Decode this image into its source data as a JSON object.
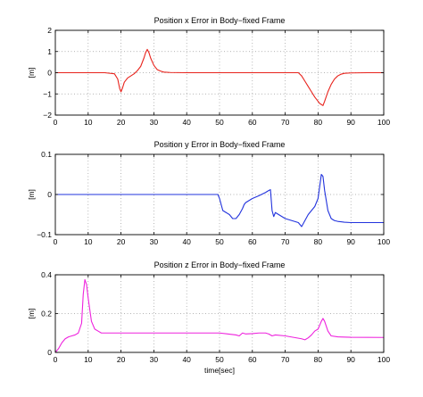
{
  "chart_data": [
    {
      "type": "line",
      "title": "Position x Error in Body−fixed Frame",
      "xlabel": "",
      "ylabel": "[m]",
      "xlim": [
        0,
        100
      ],
      "ylim": [
        -2,
        2
      ],
      "xticks": [
        0,
        10,
        20,
        30,
        40,
        50,
        60,
        70,
        80,
        90,
        100
      ],
      "yticks": [
        -2,
        -1,
        0,
        1,
        2
      ],
      "xtick_labels": [
        "0",
        "10",
        "20",
        "30",
        "40",
        "50",
        "60",
        "70",
        "80",
        "90",
        "100"
      ],
      "ytick_labels": [
        "−2",
        "−1",
        "0",
        "1",
        "2"
      ],
      "grid": true,
      "series": [
        {
          "color": "#e8231c",
          "x": [
            0,
            5,
            10,
            15,
            18,
            19,
            19.6,
            20,
            20.5,
            21,
            22,
            23,
            24,
            25,
            26,
            27,
            27.5,
            28,
            28.5,
            29,
            30,
            31,
            32,
            33,
            35,
            40,
            50,
            60,
            70,
            74,
            75,
            76,
            77,
            78,
            79,
            80,
            80.5,
            81,
            81.5,
            82,
            83,
            84,
            85,
            86,
            87,
            88,
            90,
            95,
            100
          ],
          "y": [
            0,
            0,
            0,
            0,
            -0.05,
            -0.3,
            -0.75,
            -0.9,
            -0.7,
            -0.45,
            -0.25,
            -0.15,
            -0.05,
            0.1,
            0.3,
            0.7,
            0.95,
            1.1,
            0.95,
            0.7,
            0.35,
            0.15,
            0.08,
            0.03,
            0.01,
            0,
            0,
            0,
            0,
            0,
            -0.15,
            -0.4,
            -0.65,
            -0.9,
            -1.15,
            -1.35,
            -1.45,
            -1.5,
            -1.55,
            -1.35,
            -0.9,
            -0.55,
            -0.3,
            -0.15,
            -0.07,
            -0.03,
            -0.01,
            0,
            0
          ]
        }
      ]
    },
    {
      "type": "line",
      "title": "Position y Error in Body−fixed Frame",
      "xlabel": "",
      "ylabel": "[m]",
      "xlim": [
        0,
        100
      ],
      "ylim": [
        -0.1,
        0.1
      ],
      "xticks": [
        0,
        10,
        20,
        30,
        40,
        50,
        60,
        70,
        80,
        90,
        100
      ],
      "yticks": [
        -0.1,
        0,
        0.1
      ],
      "xtick_labels": [
        "0",
        "10",
        "20",
        "30",
        "40",
        "50",
        "60",
        "70",
        "80",
        "90",
        "100"
      ],
      "ytick_labels": [
        "−0.1",
        "0",
        "0.1"
      ],
      "grid": true,
      "series": [
        {
          "color": "#2233dd",
          "x": [
            0,
            10,
            20,
            30,
            40,
            49.5,
            50,
            50.5,
            51,
            52,
            53,
            54,
            55,
            56,
            57,
            57.5,
            58,
            59,
            60,
            62,
            64,
            65,
            65.5,
            66,
            66.5,
            67,
            68,
            69,
            70,
            72,
            74,
            75,
            76,
            77,
            78,
            79,
            80,
            80.5,
            81,
            81.5,
            82,
            83,
            84,
            85,
            86,
            88,
            90,
            95,
            100
          ],
          "y": [
            0,
            0,
            0,
            0,
            0,
            0,
            -0.01,
            -0.025,
            -0.04,
            -0.045,
            -0.05,
            -0.06,
            -0.06,
            -0.05,
            -0.035,
            -0.025,
            -0.02,
            -0.015,
            -0.01,
            -0.003,
            0.005,
            0.01,
            0.012,
            -0.04,
            -0.055,
            -0.045,
            -0.05,
            -0.055,
            -0.06,
            -0.065,
            -0.07,
            -0.08,
            -0.065,
            -0.05,
            -0.04,
            -0.03,
            -0.01,
            0.02,
            0.05,
            0.045,
            0.01,
            -0.04,
            -0.06,
            -0.065,
            -0.067,
            -0.069,
            -0.07,
            -0.07,
            -0.07
          ]
        }
      ]
    },
    {
      "type": "line",
      "title": "Position z Error in Body−fixed Frame",
      "xlabel": "time[sec]",
      "ylabel": "[m]",
      "xlim": [
        0,
        100
      ],
      "ylim": [
        0,
        0.4
      ],
      "xticks": [
        0,
        10,
        20,
        30,
        40,
        50,
        60,
        70,
        80,
        90,
        100
      ],
      "yticks": [
        0,
        0.2,
        0.4
      ],
      "xtick_labels": [
        "0",
        "10",
        "20",
        "30",
        "40",
        "50",
        "60",
        "70",
        "80",
        "90",
        "100"
      ],
      "ytick_labels": [
        "0",
        "0.2",
        "0.4"
      ],
      "grid": true,
      "series": [
        {
          "color": "#ee22dd",
          "x": [
            0,
            1,
            2,
            3,
            4,
            5,
            6,
            7,
            8,
            8.5,
            9,
            9.5,
            10,
            10.5,
            11,
            12,
            13,
            14,
            16,
            20,
            30,
            40,
            50,
            55,
            56,
            57,
            58,
            60,
            62,
            64,
            65,
            66,
            67,
            70,
            75,
            76,
            77,
            78,
            79,
            80,
            81,
            81.5,
            82,
            83,
            84,
            86,
            90,
            100
          ],
          "y": [
            0,
            0.02,
            0.05,
            0.07,
            0.08,
            0.085,
            0.09,
            0.1,
            0.15,
            0.3,
            0.375,
            0.35,
            0.28,
            0.22,
            0.16,
            0.12,
            0.11,
            0.1,
            0.1,
            0.1,
            0.1,
            0.1,
            0.1,
            0.09,
            0.085,
            0.1,
            0.095,
            0.097,
            0.1,
            0.1,
            0.095,
            0.085,
            0.09,
            0.085,
            0.07,
            0.065,
            0.075,
            0.09,
            0.11,
            0.12,
            0.16,
            0.175,
            0.16,
            0.11,
            0.085,
            0.08,
            0.078,
            0.077
          ]
        }
      ]
    }
  ]
}
